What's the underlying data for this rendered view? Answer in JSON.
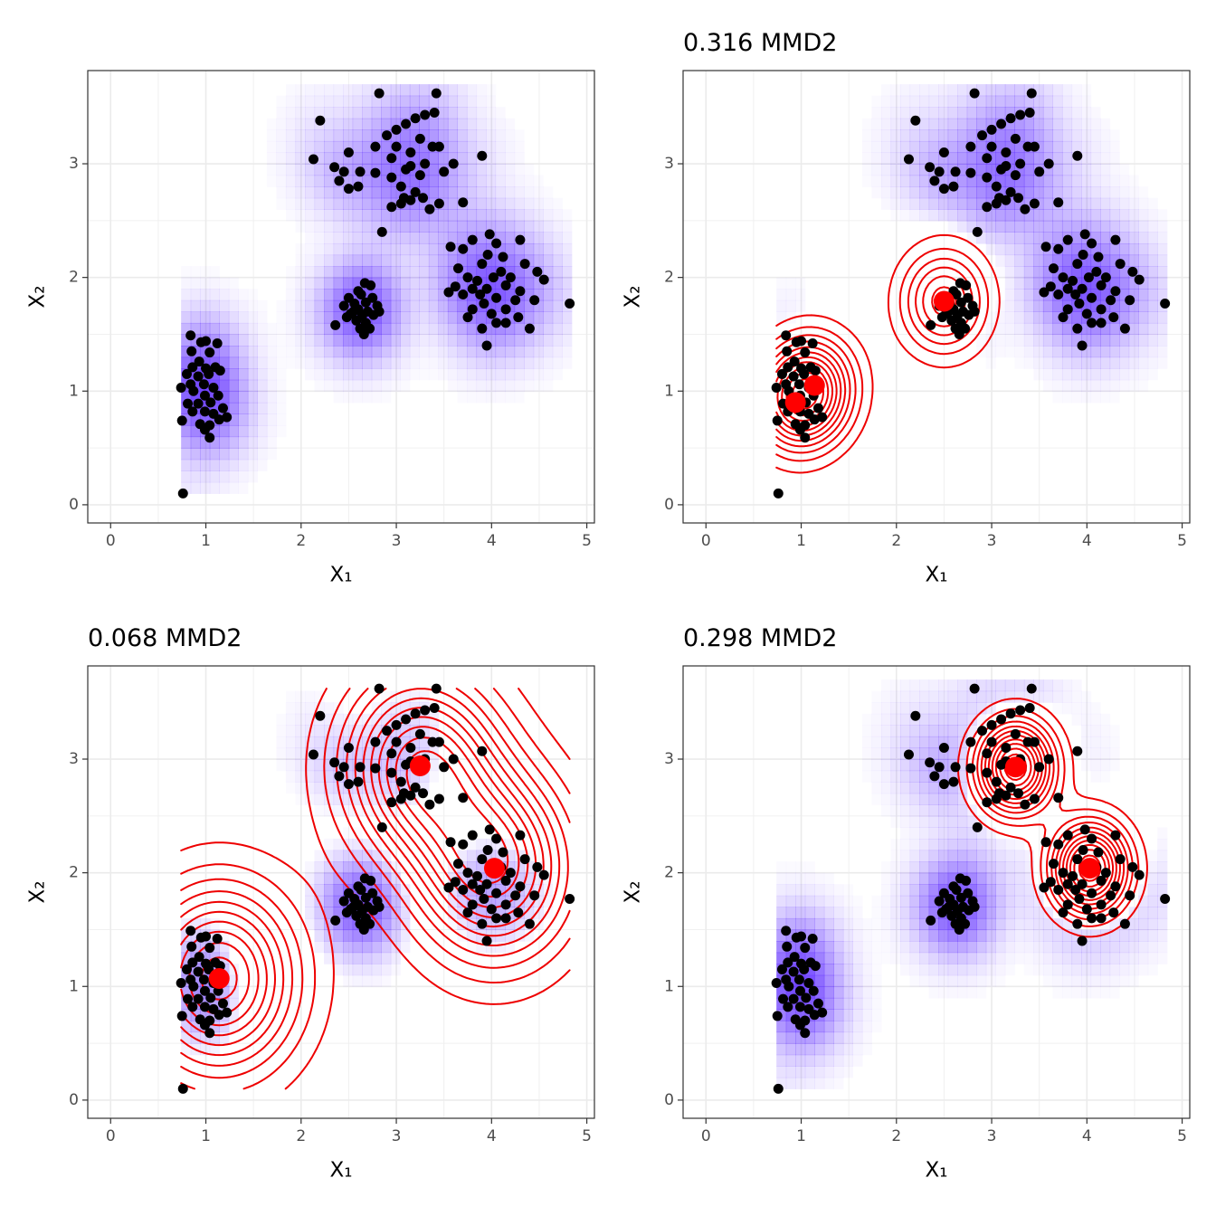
{
  "chart_data": [
    {
      "type": "scatter",
      "x_label": "X₁",
      "y_label": "X₂",
      "xlim": [
        -0.24,
        5.08
      ],
      "ylim": [
        -0.16,
        3.82
      ],
      "xticks": [
        0,
        1,
        2,
        3,
        4,
        5
      ],
      "yticks": [
        0,
        1,
        2,
        3
      ],
      "point_color": "#000000",
      "density_color": "#6a3cff",
      "x": [
        0.84,
        0.95,
        1.0,
        1.12,
        0.85,
        1.04,
        0.93,
        0.86,
        1.0,
        1.1,
        0.8,
        0.92,
        1.03,
        1.15,
        0.84,
        0.98,
        1.08,
        0.74,
        0.87,
        0.99,
        1.13,
        0.81,
        0.92,
        1.05,
        1.18,
        0.86,
        0.99,
        1.08,
        1.22,
        1.14,
        0.75,
        0.94,
        1.04,
        0.99,
        1.04,
        0.76,
        2.67,
        2.73,
        2.6,
        2.5,
        2.63,
        2.75,
        2.56,
        2.68,
        2.8,
        2.45,
        2.6,
        2.7,
        2.52,
        2.64,
        2.76,
        2.58,
        2.68,
        2.36,
        2.62,
        2.72,
        2.66,
        2.55,
        2.82,
        2.48,
        3.98,
        3.8,
        4.05,
        3.57,
        3.7,
        4.3,
        3.96,
        4.12,
        3.9,
        4.35,
        3.65,
        4.1,
        4.48,
        4.02,
        3.75,
        3.85,
        4.2,
        4.55,
        3.62,
        3.8,
        3.95,
        4.15,
        4.3,
        3.55,
        3.7,
        3.88,
        4.05,
        4.25,
        4.45,
        3.92,
        3.8,
        4.15,
        3.75,
        4.0,
        4.28,
        4.05,
        3.9,
        4.4,
        4.15,
        3.95,
        4.82,
        2.82,
        3.42,
        3.4,
        3.3,
        3.2,
        3.1,
        2.2,
        3.0,
        2.9,
        3.25,
        3.0,
        3.38,
        3.45,
        2.78,
        3.15,
        2.5,
        2.95,
        3.9,
        2.13,
        3.6,
        3.3,
        3.15,
        2.35,
        2.45,
        2.62,
        3.1,
        3.5,
        2.78,
        2.95,
        3.25,
        2.4,
        2.6,
        2.5,
        3.05,
        3.2,
        3.08,
        3.15,
        3.28,
        3.45,
        3.7,
        3.05,
        2.95,
        3.35,
        2.85
      ],
      "y": [
        1.49,
        1.43,
        1.44,
        1.42,
        1.35,
        1.34,
        1.26,
        1.21,
        1.2,
        1.21,
        1.15,
        1.13,
        1.15,
        1.18,
        1.06,
        1.06,
        1.03,
        1.03,
        1.0,
        0.96,
        0.96,
        0.89,
        0.89,
        0.9,
        0.85,
        0.82,
        0.82,
        0.8,
        0.77,
        0.75,
        0.74,
        0.71,
        0.7,
        0.66,
        0.59,
        0.1,
        1.95,
        1.93,
        1.88,
        1.82,
        1.85,
        1.82,
        1.77,
        1.78,
        1.75,
        1.75,
        1.72,
        1.7,
        1.68,
        1.66,
        1.67,
        1.62,
        1.6,
        1.58,
        1.55,
        1.55,
        1.5,
        1.7,
        1.7,
        1.65,
        2.38,
        2.33,
        2.3,
        2.27,
        2.25,
        2.33,
        2.2,
        2.18,
        2.12,
        2.12,
        2.08,
        2.05,
        2.05,
        2.0,
        2.0,
        1.97,
        2.0,
        1.98,
        1.92,
        1.9,
        1.9,
        1.93,
        1.88,
        1.87,
        1.85,
        1.85,
        1.82,
        1.8,
        1.8,
        1.77,
        1.72,
        1.72,
        1.65,
        1.68,
        1.65,
        1.6,
        1.55,
        1.55,
        1.6,
        1.4,
        1.77,
        3.62,
        3.62,
        3.45,
        3.43,
        3.4,
        3.35,
        3.38,
        3.3,
        3.25,
        3.22,
        3.15,
        3.15,
        3.15,
        3.15,
        3.1,
        3.1,
        3.05,
        3.07,
        3.04,
        3.0,
        3.0,
        2.98,
        2.97,
        2.93,
        2.93,
        2.95,
        2.93,
        2.92,
        2.88,
        2.9,
        2.85,
        2.8,
        2.78,
        2.8,
        2.75,
        2.7,
        2.68,
        2.7,
        2.65,
        2.66,
        2.65,
        2.62,
        2.6,
        2.4
      ]
    },
    {
      "type": "scatter",
      "title": "0.316 MMD2",
      "x_label": "X₁",
      "y_label": "X₂",
      "xlim": [
        -0.24,
        5.08
      ],
      "ylim": [
        -0.16,
        3.82
      ],
      "xticks": [
        0,
        1,
        2,
        3,
        4,
        5
      ],
      "yticks": [
        0,
        1,
        2,
        3
      ],
      "center_color": "#ff0000",
      "contour_color": "#ee0000",
      "centers": {
        "x": [
          2.5,
          1.14,
          0.94
        ],
        "y": [
          1.79,
          1.05,
          0.9
        ]
      }
    },
    {
      "type": "scatter",
      "title": "0.068 MMD2",
      "x_label": "X₁",
      "y_label": "X₂",
      "xlim": [
        -0.24,
        5.08
      ],
      "ylim": [
        -0.16,
        3.82
      ],
      "xticks": [
        0,
        1,
        2,
        3,
        4,
        5
      ],
      "yticks": [
        0,
        1,
        2,
        3
      ],
      "center_color": "#ff0000",
      "contour_color": "#ee0000",
      "centers": {
        "x": [
          3.25,
          4.03,
          1.14
        ],
        "y": [
          2.94,
          2.04,
          1.07
        ]
      }
    },
    {
      "type": "scatter",
      "title": "0.298 MMD2",
      "x_label": "X₁",
      "y_label": "X₂",
      "xlim": [
        -0.24,
        5.08
      ],
      "ylim": [
        -0.16,
        3.82
      ],
      "xticks": [
        0,
        1,
        2,
        3,
        4,
        5
      ],
      "yticks": [
        0,
        1,
        2,
        3
      ],
      "center_color": "#ff0000",
      "contour_color": "#ee0000",
      "centers": {
        "x": [
          3.25,
          4.03
        ],
        "y": [
          2.93,
          2.04
        ]
      }
    }
  ]
}
